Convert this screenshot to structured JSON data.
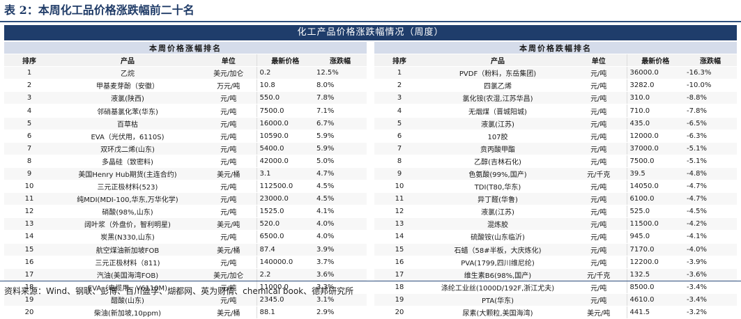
{
  "caption": "表 2：本周化工品价格涨跌幅前二十名",
  "banner": "化工产品价格涨跌幅情况（周度）",
  "left_table": {
    "title": "本周价格涨幅排名",
    "columns": [
      "排序",
      "产品",
      "单位",
      "最新价格",
      "涨跌幅"
    ],
    "rows": [
      [
        "1",
        "乙烷",
        "美元/加仑",
        "0.2",
        "12.5%"
      ],
      [
        "2",
        "甲基麦芽酚（安徽）",
        "万元/吨",
        "10.8",
        "8.0%"
      ],
      [
        "3",
        "液氯(陕西)",
        "元/吨",
        "550.0",
        "7.8%"
      ],
      [
        "4",
        "邻硝基氯化苯(华东)",
        "元/吨",
        "7500.0",
        "7.1%"
      ],
      [
        "5",
        "百草枯",
        "元/吨",
        "16000.0",
        "6.7%"
      ],
      [
        "6",
        "EVA（光伏用，6110S)",
        "元/吨",
        "10590.0",
        "5.9%"
      ],
      [
        "7",
        "双环戊二烯(山东)",
        "元/吨",
        "5400.0",
        "5.9%"
      ],
      [
        "8",
        "多晶硅（致密料)",
        "元/吨",
        "42000.0",
        "5.0%"
      ],
      [
        "9",
        "美国Henry Hub期货(主连合约)",
        "美元/桶",
        "3.1",
        "4.7%"
      ],
      [
        "10",
        "三元正极材料(523)",
        "元/吨",
        "112500.0",
        "4.5%"
      ],
      [
        "11",
        "纯MDI(MDI-100,华东,万华化学)",
        "元/吨",
        "23000.0",
        "4.5%"
      ],
      [
        "12",
        "硝酸(98%,山东)",
        "元/吨",
        "1525.0",
        "4.1%"
      ],
      [
        "13",
        "阔叶浆（外盘价，智利明星)",
        "美元/吨",
        "520.0",
        "4.0%"
      ],
      [
        "14",
        "炭黑(N330,山东)",
        "元/吨",
        "6500.0",
        "4.0%"
      ],
      [
        "15",
        "航空煤油新加坡FOB",
        "美元/桶",
        "87.4",
        "3.9%"
      ],
      [
        "16",
        "三元正极材料（811)",
        "元/吨",
        "140000.0",
        "3.7%"
      ],
      [
        "17",
        "汽油(美国海湾FOB)",
        "美元/加仑",
        "2.2",
        "3.6%"
      ],
      [
        "18",
        "EVA（电缆用，V6110M)",
        "元/吨",
        "11000.0",
        "3.3%"
      ],
      [
        "19",
        "醋酸(山东)",
        "元/吨",
        "2345.0",
        "3.1%"
      ],
      [
        "20",
        "柴油(新加坡,10ppm)",
        "美元/桶",
        "88.1",
        "2.9%"
      ]
    ]
  },
  "right_table": {
    "title": "本周价格跌幅排名",
    "columns": [
      "排序",
      "产品",
      "单位",
      "最新价格",
      "涨跌幅"
    ],
    "rows": [
      [
        "1",
        "PVDF（粉料，东岳集团)",
        "元/吨",
        "36000.0",
        "-16.3%"
      ],
      [
        "2",
        "四氯乙烯",
        "元/吨",
        "3282.0",
        "-10.0%"
      ],
      [
        "3",
        "氯化铵(农湿,江苏华昌)",
        "元/吨",
        "310.0",
        "-8.8%"
      ],
      [
        "4",
        "无烟煤（晋城阳城)",
        "元/吨",
        "710.0",
        "-7.8%"
      ],
      [
        "5",
        "液氯(江苏)",
        "元/吨",
        "435.0",
        "-6.5%"
      ],
      [
        "6",
        "107胶",
        "元/吨",
        "12000.0",
        "-6.3%"
      ],
      [
        "7",
        "贲丙酸甲酯",
        "元/吨",
        "37000.0",
        "-5.1%"
      ],
      [
        "8",
        "乙醇(吉林石化)",
        "元/吨",
        "7500.0",
        "-5.1%"
      ],
      [
        "9",
        "色氨酸(99%,国产)",
        "元/千克",
        "39.5",
        "-4.8%"
      ],
      [
        "10",
        "TDI(T80,华东)",
        "元/吨",
        "14050.0",
        "-4.7%"
      ],
      [
        "11",
        "异丁醛(华鲁)",
        "元/吨",
        "6100.0",
        "-4.7%"
      ],
      [
        "12",
        "液氯(江苏)",
        "元/吨",
        "525.0",
        "-4.5%"
      ],
      [
        "13",
        "混炼胶",
        "元/吨",
        "11500.0",
        "-4.2%"
      ],
      [
        "14",
        "硫酸铵(山东临沂)",
        "元/吨",
        "945.0",
        "-4.1%"
      ],
      [
        "15",
        "石蜡（58#半板，大庆炼化)",
        "元/吨",
        "7170.0",
        "-4.0%"
      ],
      [
        "16",
        "PVA(1799,四川维尼纶)",
        "元/吨",
        "12200.0",
        "-3.9%"
      ],
      [
        "17",
        "维生素B6(98%,国产)",
        "元/千克",
        "132.5",
        "-3.6%"
      ],
      [
        "18",
        "涤纶工业丝(1000D/192F,浙江尤夫)",
        "元/吨",
        "8500.0",
        "-3.4%"
      ],
      [
        "19",
        "PTA(华东)",
        "元/吨",
        "4610.0",
        "-3.4%"
      ],
      [
        "20",
        "尿素(大颗粒,美国海湾)",
        "美元/吨",
        "441.5",
        "-3.2%"
      ]
    ]
  },
  "source": "资料来源：Wind、钢联、彭博、百川盈孚、煳都网、英为财情、chemical book、德邦研究所"
}
